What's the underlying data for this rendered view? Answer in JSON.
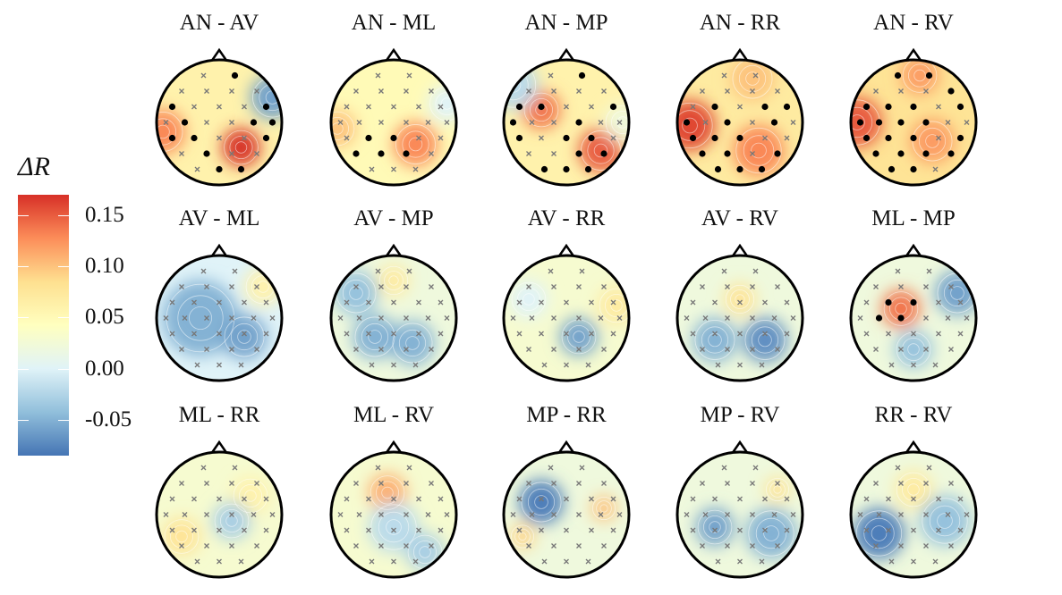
{
  "chart_data": {
    "type": "heatmap",
    "subtype": "scalp-topography",
    "panels": [
      {
        "title": "AN - AV"
      },
      {
        "title": "AN - ML"
      },
      {
        "title": "AN - MP"
      },
      {
        "title": "AN - RR"
      },
      {
        "title": "AN - RV"
      },
      {
        "title": "AV - ML"
      },
      {
        "title": "AV - MP"
      },
      {
        "title": "AV - RR"
      },
      {
        "title": "AV - RV"
      },
      {
        "title": "ML - MP"
      },
      {
        "title": "ML - RR"
      },
      {
        "title": "ML - RV"
      },
      {
        "title": "MP - RR"
      },
      {
        "title": "MP - RV"
      },
      {
        "title": "RR - RV"
      }
    ],
    "colorbar": {
      "label": "ΔR",
      "ticks": [
        "0.15",
        "0.10",
        "0.05",
        "0.00",
        "-0.05"
      ],
      "range": [
        -0.085,
        0.17
      ],
      "colormap": "RdYlBu_r",
      "colors": [
        "#4575b4",
        "#91bfdb",
        "#e0f3f8",
        "#ffffbf",
        "#fee090",
        "#fc8d59",
        "#d73027"
      ]
    },
    "legend": {
      "significant_electrode": "black dot",
      "non_significant_electrode": "grey cross"
    }
  }
}
